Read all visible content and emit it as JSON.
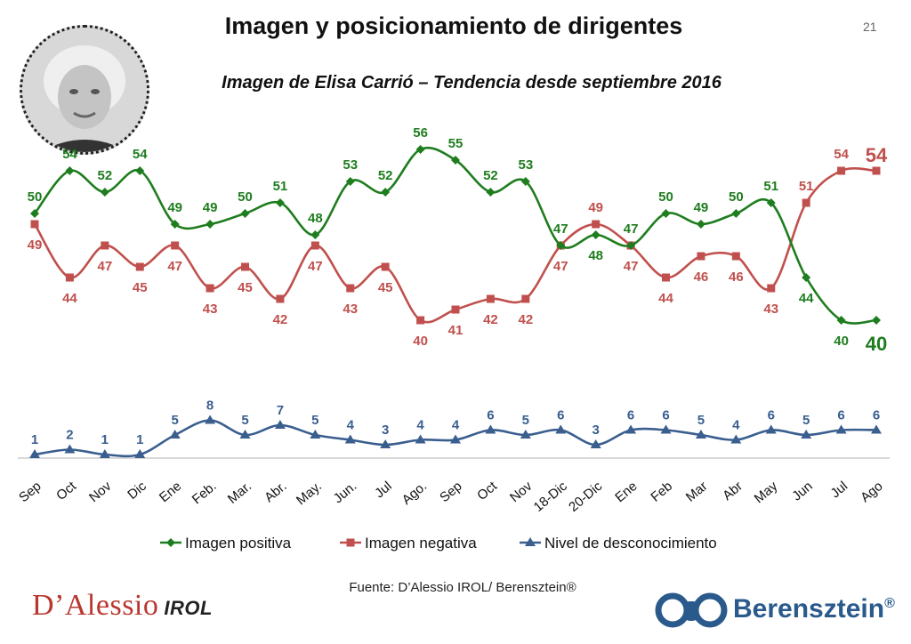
{
  "page": {
    "title": "Imagen y posicionamiento de dirigentes",
    "subtitle": "Imagen de Elisa Carrió – Tendencia desde septiembre 2016",
    "page_number": "21",
    "source": "Fuente: D’Alessio IROL/ Berensztein®",
    "logo_left_main": "D’Alessio",
    "logo_left_sub": "IROL",
    "logo_right_word": "Berensztein",
    "logo_right_reg": "®"
  },
  "chart_data": {
    "type": "line",
    "categories": [
      "Sep",
      "Oct",
      "Nov",
      "Dic",
      "Ene",
      "Feb.",
      "Mar.",
      "Abr.",
      "May.",
      "Jun.",
      "Jul",
      "Ago.",
      "Sep",
      "Oct",
      "Nov",
      "18-Dic",
      "20-Dic",
      "Ene",
      "Feb",
      "Mar",
      "Abr",
      "May",
      "Jun",
      "Jul",
      "Ago"
    ],
    "series": [
      {
        "name": "Imagen positiva",
        "color": "#1e7d1e",
        "marker": "diamond",
        "values": [
          50,
          54,
          52,
          54,
          49,
          49,
          50,
          51,
          48,
          53,
          52,
          56,
          55,
          52,
          53,
          47,
          48,
          47,
          50,
          49,
          50,
          51,
          44,
          40,
          40
        ]
      },
      {
        "name": "Imagen negativa",
        "color": "#c0504d",
        "marker": "square",
        "values": [
          49,
          44,
          47,
          45,
          47,
          43,
          45,
          42,
          47,
          43,
          45,
          40,
          41,
          42,
          42,
          47,
          49,
          47,
          44,
          46,
          46,
          43,
          51,
          54,
          54
        ]
      },
      {
        "name": "Nivel de desconocimiento",
        "color": "#3a5f8f",
        "marker": "triangle",
        "values": [
          1,
          2,
          1,
          1,
          5,
          8,
          5,
          7,
          5,
          4,
          3,
          4,
          4,
          6,
          5,
          6,
          3,
          6,
          6,
          5,
          4,
          6,
          5,
          6,
          6
        ]
      }
    ],
    "highlight_last": {
      "Imagen positiva": "40",
      "Imagen negativa": "54"
    },
    "legend_position": "bottom",
    "grid": false
  }
}
